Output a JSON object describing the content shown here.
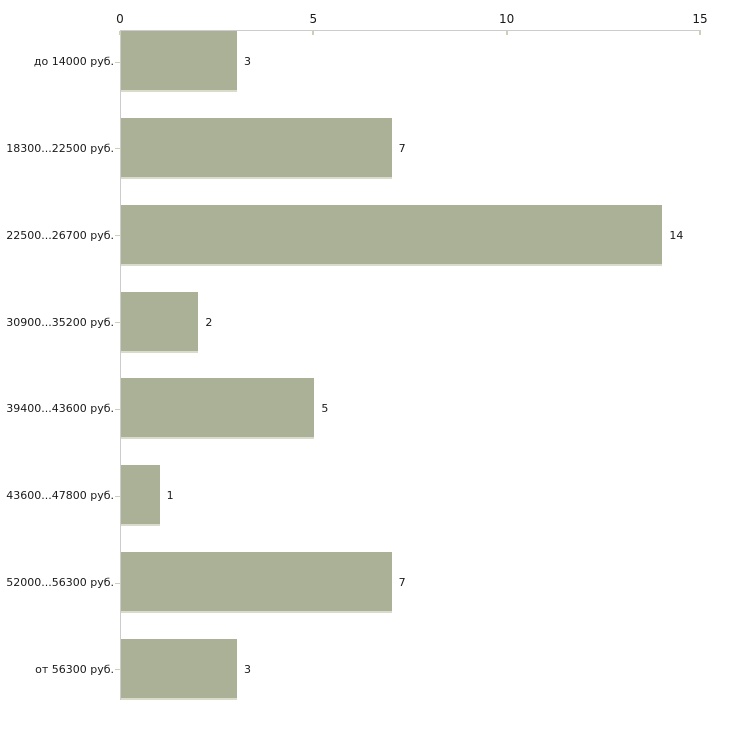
{
  "chart_data": {
    "type": "bar",
    "orientation": "horizontal",
    "title": "",
    "xlabel": "",
    "ylabel": "",
    "categories": [
      "до 14000 руб.",
      "18300...22500 руб.",
      "22500...26700 руб.",
      "30900...35200 руб.",
      "39400...43600 руб.",
      "43600...47800 руб.",
      "52000...56300 руб.",
      "от 56300 руб."
    ],
    "values": [
      3,
      7,
      14,
      2,
      5,
      1,
      7,
      3
    ],
    "x_ticks": [
      "0",
      "5",
      "10",
      "15"
    ],
    "xlim": [
      0,
      15
    ],
    "grid": false,
    "legend_position": "none",
    "axis_position": "top",
    "colors": {
      "bar_color": "#abb197",
      "bar_edge_color": "#d9dcca",
      "axis_line_color": "#cccccc",
      "tick_mark_color": "#cdd0b4",
      "label_color": "#1a1a1a",
      "background": "#ffffff"
    }
  }
}
